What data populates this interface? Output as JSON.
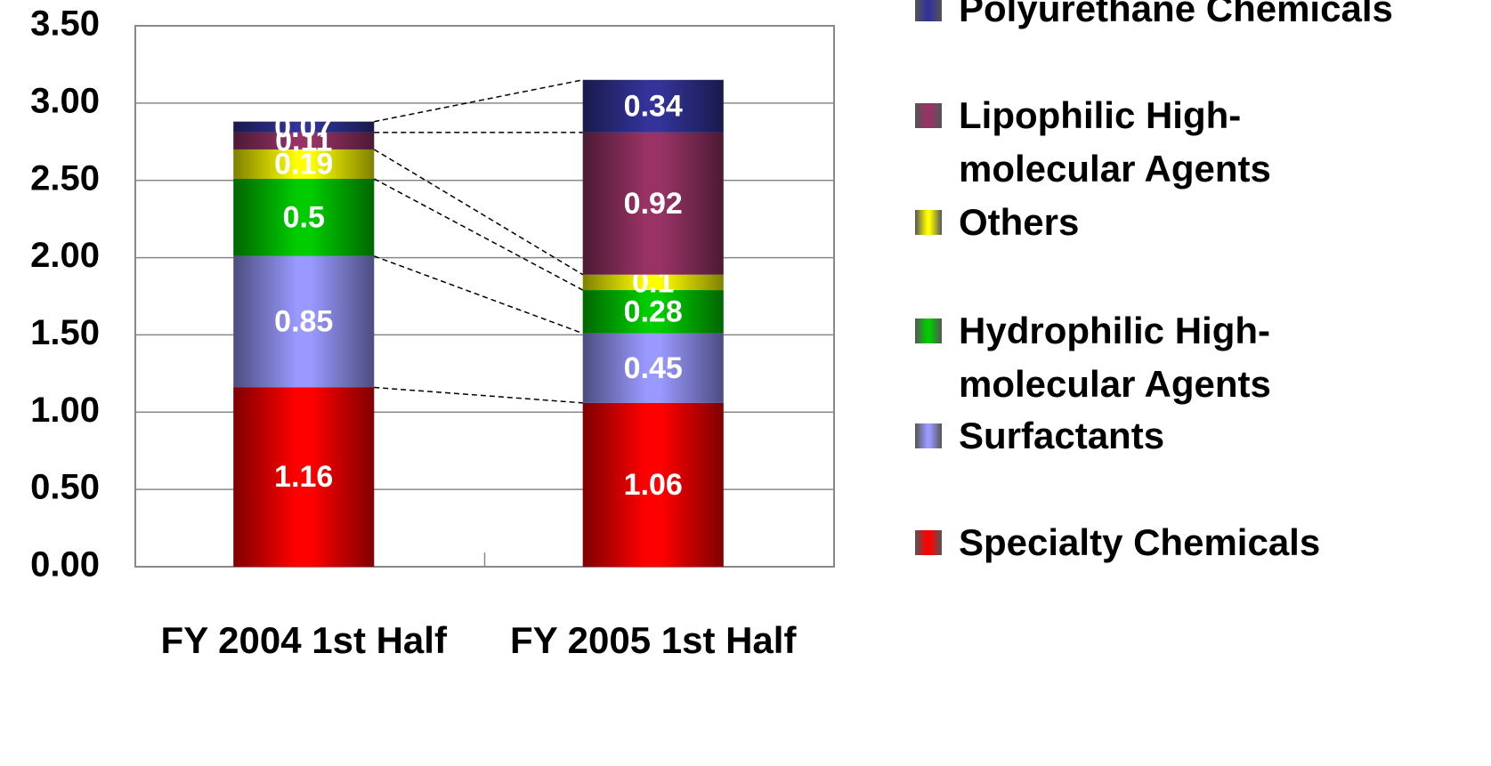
{
  "chart_data": {
    "type": "stacked_bar",
    "categories": [
      "FY 2004 1st Half",
      "FY 2005 1st Half"
    ],
    "series": [
      {
        "name": "Specialty Chemicals",
        "color": "#ff0000",
        "values": [
          1.16,
          1.06
        ]
      },
      {
        "name": "Surfactants",
        "color": "#9999ff",
        "values": [
          0.85,
          0.45
        ]
      },
      {
        "name": "Hydrophilic High-molecular Agents",
        "color": "#00cc00",
        "values": [
          0.5,
          0.28
        ]
      },
      {
        "name": "Others",
        "color": "#ffff00",
        "values": [
          0.19,
          0.1
        ]
      },
      {
        "name": "Lipophilic High-molecular Agents",
        "color": "#993366",
        "values": [
          0.11,
          0.92
        ]
      },
      {
        "name": "Polyurethane Chemicals",
        "color": "#333399",
        "values": [
          0.07,
          0.34
        ]
      }
    ],
    "ylim": [
      0,
      3.5
    ],
    "yticks": [
      {
        "value": 0,
        "label": "0.00"
      },
      {
        "value": 0.5,
        "label": "0.50"
      },
      {
        "value": 1,
        "label": "1.00"
      },
      {
        "value": 1.5,
        "label": "1.50"
      },
      {
        "value": 2,
        "label": "2.00"
      },
      {
        "value": 2.5,
        "label": "2.50"
      },
      {
        "value": 3,
        "label": "3.00"
      },
      {
        "value": 3.5,
        "label": "3.50"
      }
    ],
    "grid": true,
    "legend": "right"
  }
}
